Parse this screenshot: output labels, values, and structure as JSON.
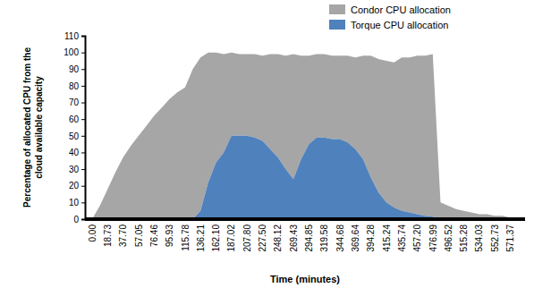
{
  "chart_data": {
    "type": "area",
    "stacked": true,
    "legend": "top-right",
    "grid": false,
    "xlabel": "Time (minutes)",
    "ylabel": [
      "Percentage of allocated CPU from the",
      "cloud available capacity"
    ],
    "categories": [
      "0.00",
      null,
      "18.73",
      null,
      "37.70",
      null,
      "57.05",
      null,
      "76.46",
      null,
      "95.93",
      null,
      "115.78",
      null,
      "136.21",
      null,
      "162.10",
      null,
      "187.02",
      null,
      "207.80",
      null,
      "227.50",
      null,
      "248.12",
      null,
      "269.43",
      null,
      "294.85",
      null,
      "319.58",
      null,
      "344.68",
      null,
      "369.64",
      null,
      "394.28",
      null,
      "415.24",
      null,
      "435.74",
      null,
      "457.20",
      null,
      "476.99",
      null,
      "496.52",
      null,
      "515.28",
      null,
      "534.03",
      null,
      "552.73",
      null,
      "571.37",
      null
    ],
    "series": [
      {
        "name": "Condor CPU allocation",
        "color": "#a6a6a6",
        "values": [
          0,
          8,
          18,
          28,
          37,
          44,
          50,
          56,
          62,
          67,
          72,
          76,
          79,
          90,
          92,
          78,
          66,
          59,
          50,
          49,
          49,
          50,
          51,
          57,
          62,
          68,
          75,
          62,
          53,
          50,
          50,
          50,
          50,
          52,
          55,
          62,
          73,
          80,
          85,
          87,
          92,
          93,
          95,
          96,
          97.5,
          10,
          8,
          6,
          5,
          4,
          3,
          3,
          2,
          2,
          1,
          1
        ]
      },
      {
        "name": "Torque CPU allocation",
        "color": "#4f81bd",
        "values": [
          0,
          0,
          0,
          0,
          0,
          0,
          0,
          0,
          0,
          0,
          0,
          0,
          0,
          0,
          5,
          22,
          34,
          40,
          50,
          50,
          50,
          49,
          47,
          42,
          37,
          30,
          24,
          36,
          45,
          49,
          49,
          48,
          48,
          46,
          42,
          36,
          25,
          16,
          10,
          7,
          5,
          4,
          3,
          2,
          1.5,
          0,
          0,
          0,
          0,
          0,
          0,
          0,
          0,
          0,
          0,
          0
        ]
      }
    ],
    "ylim": [
      0,
      110
    ],
    "yticks": [
      0,
      10,
      20,
      30,
      40,
      50,
      60,
      70,
      80,
      90,
      100,
      110
    ]
  }
}
